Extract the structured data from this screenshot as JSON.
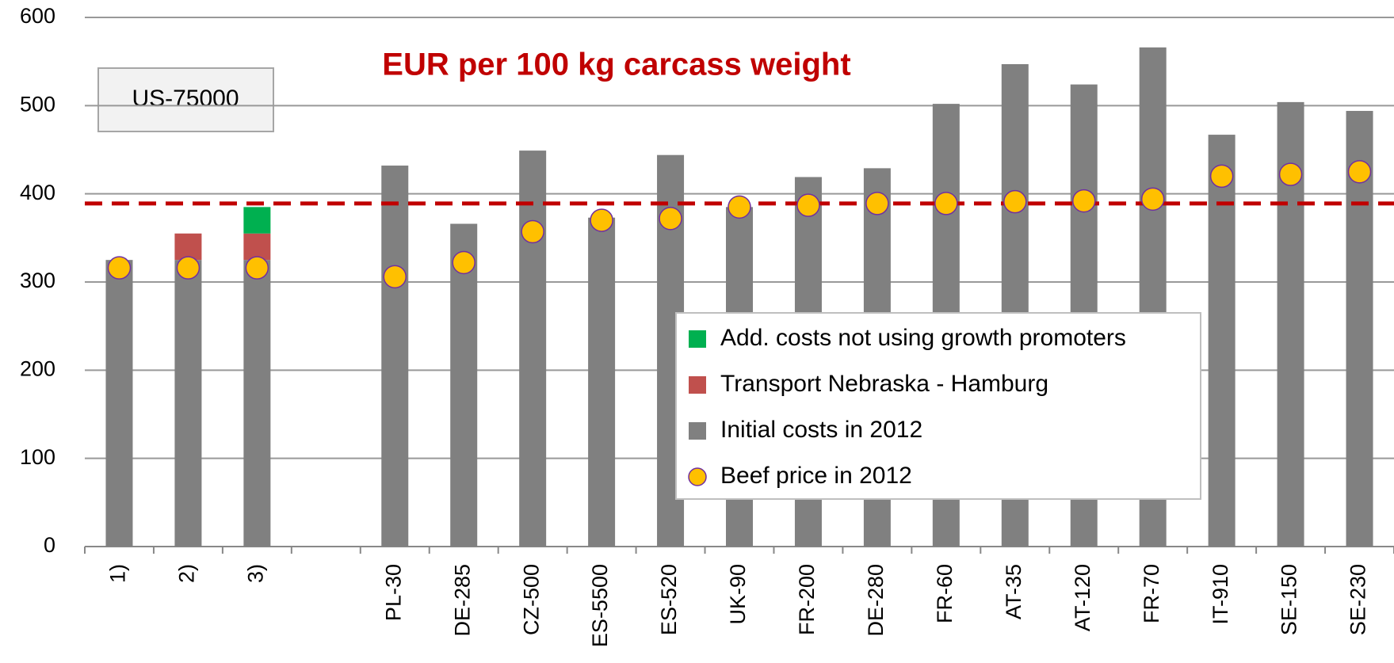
{
  "chart_data": {
    "type": "bar",
    "stacked": true,
    "title": "EUR per 100 kg carcass weight",
    "annotation": "US-75000",
    "categories": [
      "1)",
      "2)",
      "3)",
      null,
      "PL-30",
      "DE-285",
      "CZ-500",
      "ES-5500",
      "ES-520",
      "UK-90",
      "FR-200",
      "DE-280",
      "FR-60",
      "AT-35",
      "AT-120",
      "FR-70",
      "IT-910",
      "SE-150",
      "SE-230"
    ],
    "series": [
      {
        "name": "Initial costs in 2012",
        "color": "#808080",
        "type": "bar",
        "values": [
          325,
          325,
          325,
          null,
          432,
          366,
          449,
          373,
          444,
          385,
          419,
          429,
          502,
          547,
          524,
          566,
          467,
          504,
          494
        ]
      },
      {
        "name": "Transport Nebraska - Hamburg",
        "color": "#c0504d",
        "type": "bar",
        "values": [
          null,
          30,
          30,
          null,
          null,
          null,
          null,
          null,
          null,
          null,
          null,
          null,
          null,
          null,
          null,
          null,
          null,
          null,
          null
        ]
      },
      {
        "name": "Add. costs not using growth promoters",
        "color": "#00b050",
        "type": "bar",
        "values": [
          null,
          null,
          30,
          null,
          null,
          null,
          null,
          null,
          null,
          null,
          null,
          null,
          null,
          null,
          null,
          null,
          null,
          null,
          null
        ]
      },
      {
        "name": "Beef price in 2012",
        "color": "#ffc000",
        "type": "scatter",
        "values": [
          316,
          316,
          316,
          null,
          306,
          322,
          357,
          370,
          372,
          385,
          387,
          389,
          389,
          391,
          392,
          394,
          420,
          422,
          425
        ]
      }
    ],
    "reference_line": 389,
    "reference_color": "#c00000",
    "ylim": [
      0,
      600
    ],
    "yticks": [
      0,
      100,
      200,
      300,
      400,
      500,
      600
    ],
    "grid": true
  }
}
